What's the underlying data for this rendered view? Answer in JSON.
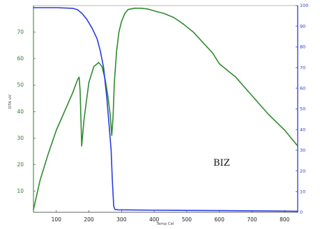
{
  "chart_data": {
    "type": "line",
    "xlabel": "Temp Cel",
    "ylabel_left": "DTA uV",
    "ylabel_right": "",
    "annotation": "BIZ",
    "xlim": [
      30,
      840
    ],
    "ylim_left": [
      2,
      80
    ],
    "ylim_right": [
      0,
      100
    ],
    "x_ticks": [
      100,
      200,
      300,
      400,
      500,
      600,
      700,
      800
    ],
    "y_ticks_left": [
      10,
      20,
      30,
      40,
      50,
      60,
      70
    ],
    "y_ticks_right": [
      0,
      10,
      20,
      30,
      40,
      50,
      60,
      70,
      80,
      90,
      100
    ],
    "colors": {
      "dta": "#2e8b2e",
      "tg": "#2a3ce0",
      "left_axis": "#2f7a2f",
      "right_axis": "#2a3cc8"
    },
    "series": [
      {
        "name": "",
        "axis": "left",
        "x": [
          30,
          50,
          75,
          100,
          125,
          150,
          165,
          170,
          173,
          178,
          185,
          200,
          215,
          230,
          240,
          250,
          258,
          265,
          270,
          274,
          278,
          285,
          292,
          300,
          310,
          320,
          340,
          360,
          380,
          400,
          430,
          460,
          490,
          520,
          550,
          580,
          600,
          650,
          700,
          750,
          800,
          840
        ],
        "y": [
          3,
          14,
          24,
          33,
          40,
          47,
          52,
          53,
          48,
          27,
          37,
          51,
          57,
          58.5,
          57,
          52,
          46,
          39,
          31,
          38,
          51,
          63,
          70,
          74,
          77,
          78.5,
          79,
          79,
          78.7,
          78,
          77,
          75.5,
          73,
          70,
          66,
          62,
          58,
          53,
          46,
          39,
          33,
          27
        ]
      },
      {
        "name": "",
        "axis": "right",
        "x": [
          30,
          100,
          150,
          165,
          180,
          195,
          210,
          225,
          235,
          245,
          255,
          263,
          268,
          272,
          276,
          280,
          290,
          400,
          500,
          600,
          700,
          780,
          840
        ],
        "y": [
          99,
          99,
          98.7,
          98,
          96,
          93,
          89,
          84,
          78,
          70,
          55,
          40,
          30,
          15,
          3,
          1.3,
          1.2,
          1,
          0.9,
          0.8,
          0.7,
          0.6,
          0.5
        ]
      }
    ]
  }
}
